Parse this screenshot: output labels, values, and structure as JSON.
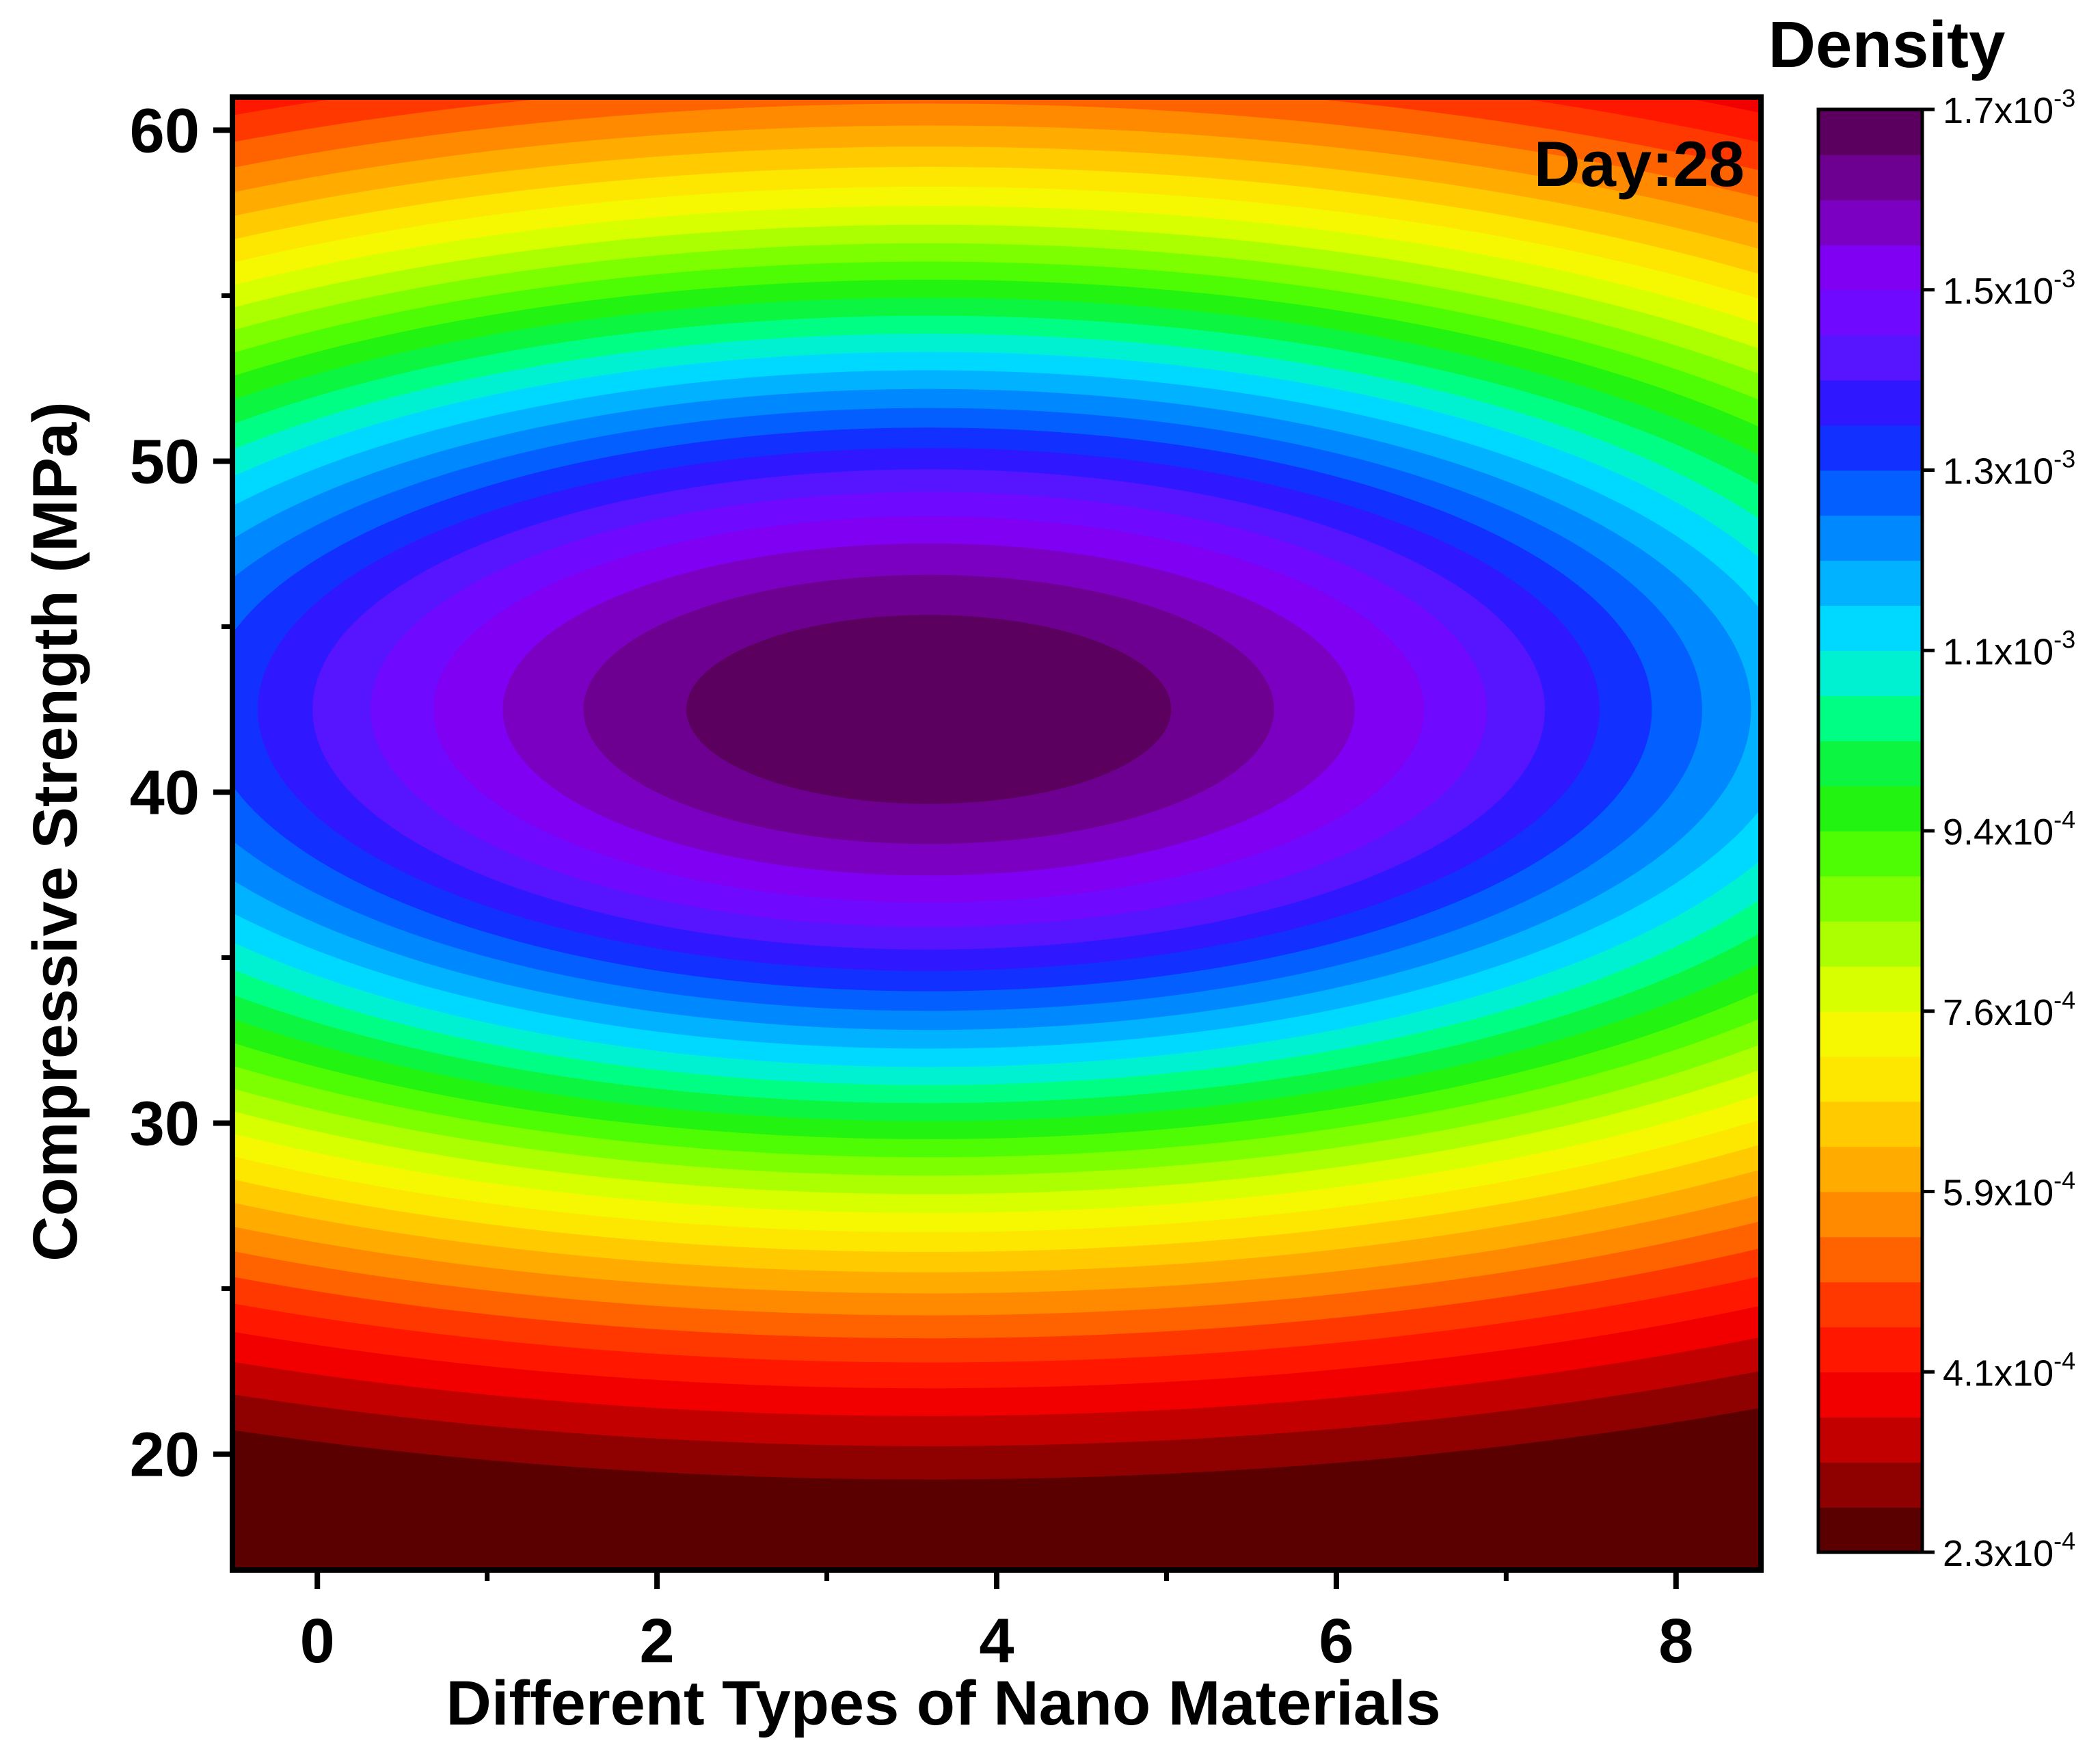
{
  "chart_data": {
    "type": "heatmap",
    "subtype": "filled-contour",
    "annotation": "Day:28",
    "xlabel": "Different Types of Nano Materials",
    "ylabel": "Compressive Strength (MPa)",
    "xlim": [
      -0.5,
      8.5
    ],
    "ylim": [
      16.5,
      61
    ],
    "x_ticks": [
      0,
      2,
      4,
      6,
      8
    ],
    "x_tick_labels": [
      "0",
      "2",
      "4",
      "6",
      "8"
    ],
    "y_ticks": [
      20,
      30,
      40,
      50,
      60
    ],
    "y_tick_labels": [
      "20",
      "30",
      "40",
      "50",
      "60"
    ],
    "colorbar": {
      "title": "Density",
      "min": 0.00023,
      "max": 0.0017,
      "levels": 32,
      "ticks": [
        {
          "base": "2.3x10",
          "exp": "-4"
        },
        {
          "base": "4.1x10",
          "exp": "-4"
        },
        {
          "base": "5.9x10",
          "exp": "-4"
        },
        {
          "base": "7.6x10",
          "exp": "-4"
        },
        {
          "base": "9.4x10",
          "exp": "-4"
        },
        {
          "base": "1.1x10",
          "exp": "-3"
        },
        {
          "base": "1.3x10",
          "exp": "-3"
        },
        {
          "base": "1.5x10",
          "exp": "-3"
        },
        {
          "base": "1.7x10",
          "exp": "-3"
        }
      ]
    },
    "density_peak": {
      "x": 3.6,
      "y": 42.5,
      "value": 0.0017
    },
    "density_spread": {
      "sx": 6.1,
      "sy": 12.2
    },
    "colorscale": [
      "#5a0000",
      "#b00000",
      "#ff0000",
      "#ff3300",
      "#ff7a00",
      "#ffb000",
      "#ffe400",
      "#f2ff00",
      "#aaff00",
      "#5cff00",
      "#14f014",
      "#00ff80",
      "#00eaff",
      "#00aaff",
      "#0066ff",
      "#1a1aff",
      "#5a14ff",
      "#8000ff",
      "#7a00b0",
      "#5c0060"
    ]
  }
}
